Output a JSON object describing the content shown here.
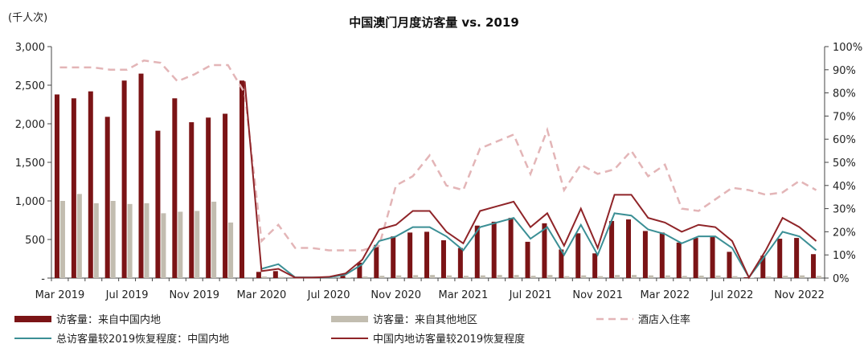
{
  "chart_data": {
    "type": "bar+line",
    "title": "中国澳门月度访客量 vs. 2019",
    "y_left_unit": "(千人次)",
    "y_left_range": [
      0,
      3000
    ],
    "y_left_ticks": [
      "-",
      "500",
      "1,000",
      "1,500",
      "2,000",
      "2,500",
      "3,000"
    ],
    "y_right_range": [
      0,
      1
    ],
    "y_right_ticks": [
      "0%",
      "10%",
      "20%",
      "30%",
      "40%",
      "50%",
      "60%",
      "70%",
      "80%",
      "90%",
      "100%"
    ],
    "x_tick_labels": [
      {
        "index": 0,
        "label": "Mar 2019"
      },
      {
        "index": 4,
        "label": "Jul 2019"
      },
      {
        "index": 8,
        "label": "Nov 2019"
      },
      {
        "index": 12,
        "label": "Mar 2020"
      },
      {
        "index": 16,
        "label": "Jul 2020"
      },
      {
        "index": 20,
        "label": "Nov 2020"
      },
      {
        "index": 24,
        "label": "Mar 2021"
      },
      {
        "index": 28,
        "label": "Jul 2021"
      },
      {
        "index": 32,
        "label": "Nov 2021"
      },
      {
        "index": 36,
        "label": "Mar 2022"
      },
      {
        "index": 40,
        "label": "Jul 2022"
      },
      {
        "index": 44,
        "label": "Nov 2022"
      }
    ],
    "series": [
      {
        "name": "访客量：来自中国内地",
        "kind": "bar",
        "axis": "left",
        "color": "#7b1416",
        "values": [
          2380,
          2330,
          2420,
          2090,
          2560,
          2650,
          1910,
          2330,
          2020,
          2080,
          2130,
          2560,
          80,
          90,
          5,
          5,
          12,
          30,
          200,
          430,
          540,
          590,
          600,
          490,
          390,
          680,
          730,
          780,
          470,
          710,
          370,
          580,
          320,
          740,
          760,
          610,
          590,
          460,
          520,
          540,
          340,
          10,
          290,
          510,
          520,
          310
        ]
      },
      {
        "name": "访客量：来自其他地区",
        "kind": "bar",
        "axis": "left",
        "color": "#c2bdb0",
        "values": [
          1000,
          1090,
          970,
          1000,
          960,
          970,
          840,
          860,
          870,
          990,
          720,
          null,
          20,
          15,
          2,
          2,
          4,
          8,
          20,
          30,
          35,
          38,
          40,
          35,
          30,
          35,
          40,
          40,
          30,
          40,
          25,
          35,
          25,
          40,
          40,
          35,
          35,
          28,
          32,
          33,
          25,
          5,
          20,
          30,
          35,
          28
        ]
      },
      {
        "name": "总访客量较2019恢复程度：中国内地",
        "kind": "line",
        "axis": "right",
        "color": "#3b8f95",
        "values": [
          null,
          null,
          null,
          null,
          null,
          null,
          null,
          null,
          null,
          null,
          null,
          null,
          0.04,
          0.06,
          0.003,
          0.003,
          0.003,
          0.015,
          0.06,
          0.16,
          0.18,
          0.22,
          0.22,
          0.18,
          0.12,
          0.22,
          0.24,
          0.26,
          0.17,
          0.22,
          0.1,
          0.23,
          0.1,
          0.28,
          0.27,
          0.21,
          0.19,
          0.15,
          0.18,
          0.18,
          0.13,
          0.003,
          0.1,
          0.2,
          0.18,
          0.12
        ]
      },
      {
        "name": "中国内地访客量较2019恢复程度",
        "kind": "line",
        "axis": "right",
        "color": "#8f2428",
        "values": [
          null,
          null,
          null,
          null,
          null,
          null,
          null,
          null,
          null,
          null,
          null,
          0.85,
          0.03,
          0.04,
          0.002,
          0.002,
          0.005,
          0.02,
          0.08,
          0.21,
          0.23,
          0.29,
          0.29,
          0.2,
          0.15,
          0.29,
          0.31,
          0.33,
          0.22,
          0.28,
          0.14,
          0.3,
          0.13,
          0.36,
          0.36,
          0.26,
          0.24,
          0.2,
          0.23,
          0.22,
          0.16,
          0.002,
          0.12,
          0.26,
          0.22,
          0.16
        ]
      },
      {
        "name": "酒店入住率",
        "kind": "dashed-line",
        "axis": "right",
        "color": "#e3b5b7",
        "values": [
          0.91,
          0.91,
          0.91,
          0.9,
          0.9,
          0.94,
          0.93,
          0.85,
          0.88,
          0.92,
          0.92,
          0.8,
          0.16,
          0.23,
          0.13,
          0.13,
          0.12,
          0.12,
          0.12,
          0.14,
          0.4,
          0.44,
          0.53,
          0.4,
          0.38,
          0.56,
          0.59,
          0.62,
          0.45,
          0.64,
          0.38,
          0.49,
          0.45,
          0.47,
          0.55,
          0.44,
          0.49,
          0.3,
          0.29,
          0.34,
          0.39,
          0.38,
          0.36,
          0.37,
          0.42,
          0.38
        ]
      }
    ],
    "legend_position": "bottom",
    "grid": false
  }
}
